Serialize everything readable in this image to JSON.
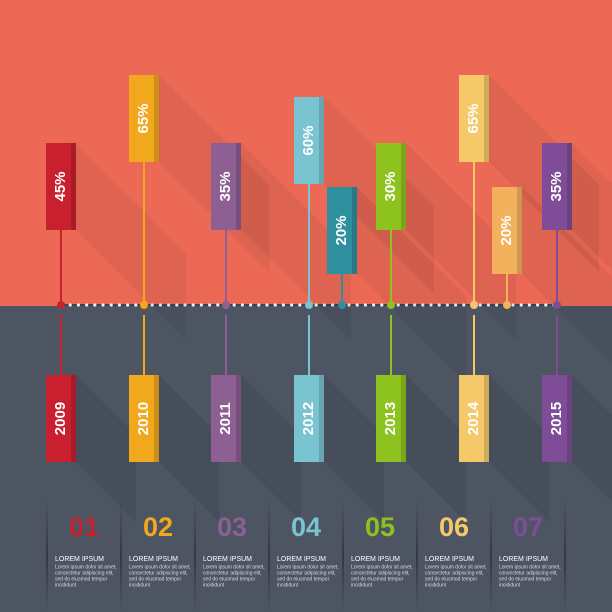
{
  "tags": [
    {
      "label": "45%",
      "color": "#c8202f"
    },
    {
      "label": "65%",
      "color": "#f2a81d"
    },
    {
      "label": "35%",
      "color": "#8d5f93"
    },
    {
      "label": "60%",
      "color": "#7ac3d0"
    },
    {
      "label": "20%",
      "color": "#2e8f9f"
    },
    {
      "label": "30%",
      "color": "#8dc21f"
    },
    {
      "label": "65%",
      "color": "#f5c96a"
    },
    {
      "label": "20%",
      "color": "#f3b15e"
    },
    {
      "label": "35%",
      "color": "#7f4d97"
    }
  ],
  "years": [
    {
      "label": "2009",
      "color": "#c8202f"
    },
    {
      "label": "2010",
      "color": "#f2a81d"
    },
    {
      "label": "2011",
      "color": "#8d5f93"
    },
    {
      "label": "2012",
      "color": "#7ac3d0"
    },
    {
      "label": "2013",
      "color": "#8dc21f"
    },
    {
      "label": "2014",
      "color": "#f5c96a"
    },
    {
      "label": "2015",
      "color": "#7f4d97"
    }
  ],
  "columns": [
    {
      "number": "01",
      "title": "LOREM IPSUM",
      "body": [
        "Lorem ipsum dolor sit amet,",
        "consectetur adipiscing elit,",
        "sed do eiusmod tempor",
        "incididunt"
      ],
      "color": "#c8202f"
    },
    {
      "number": "02",
      "title": "LOREM IPSUM",
      "body": [
        "Lorem ipsum dolor sit amet,",
        "consectetur adipiscing elit,",
        "sed do eiusmod tempor",
        "incididunt"
      ],
      "color": "#f2a81d"
    },
    {
      "number": "03",
      "title": "LOREM IPSUM",
      "body": [
        "Lorem ipsum dolor sit amet,",
        "consectetur adipiscing elit,",
        "sed do eiusmod tempor",
        "incididunt"
      ],
      "color": "#8d5f93"
    },
    {
      "number": "04",
      "title": "LOREM IPSUM",
      "body": [
        "Lorem ipsum dolor sit amet,",
        "consectetur adipiscing elit,",
        "sed do eiusmod tempor",
        "incididunt"
      ],
      "color": "#7ac3d0"
    },
    {
      "number": "05",
      "title": "LOREM IPSUM",
      "body": [
        "Lorem ipsum dolor sit amet,",
        "consectetur adipiscing elit,",
        "sed do eiusmod tempor",
        "incididunt"
      ],
      "color": "#8dc21f"
    },
    {
      "number": "06",
      "title": "LOREM IPSUM",
      "body": [
        "Lorem ipsum dolor sit amet,",
        "consectetur adipiscing elit,",
        "sed do eiusmod tempor",
        "incididunt"
      ],
      "color": "#f5c96a"
    },
    {
      "number": "07",
      "title": "LOREM IPSUM",
      "body": [
        "Lorem ipsum dolor sit amet,",
        "consectetur adipiscing elit,",
        "sed do eiusmod tempor",
        "incididunt"
      ],
      "color": "#7f4d97"
    }
  ]
}
